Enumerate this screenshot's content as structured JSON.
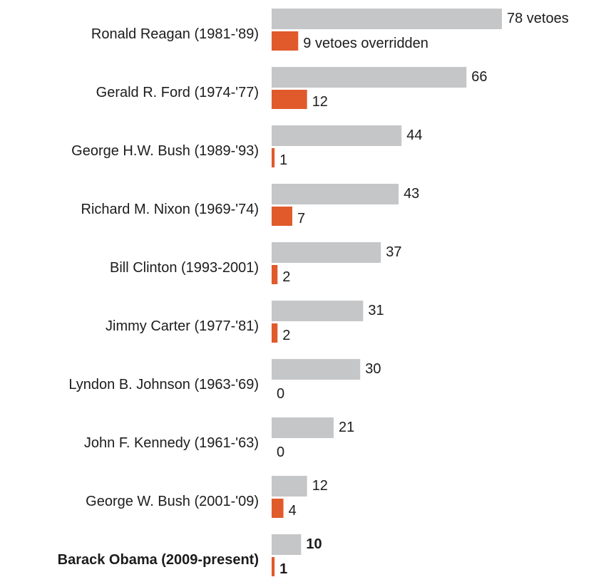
{
  "chart_data": {
    "type": "bar",
    "orientation": "horizontal",
    "categories": [
      "Ronald Reagan (1981-'89)",
      "Gerald R. Ford (1974-'77)",
      "George H.W. Bush (1989-'93)",
      "Richard M. Nixon (1969-'74)",
      "Bill Clinton (1993-2001)",
      "Jimmy Carter (1977-'81)",
      "Lyndon B. Johnson (1963-'69)",
      "John F. Kennedy (1961-'63)",
      "George W. Bush (2001-'09)",
      "Barack Obama (2009-present)"
    ],
    "highlighted_category": "Barack Obama (2009-present)",
    "series": [
      {
        "color": "#c5c6c8",
        "values": [
          78,
          66,
          44,
          43,
          37,
          31,
          30,
          21,
          12,
          10
        ],
        "first_label_suffix": " vetoes"
      },
      {
        "color": "#e05a2b",
        "values": [
          9,
          12,
          1,
          7,
          2,
          2,
          0,
          0,
          4,
          1
        ],
        "first_label_suffix": " vetoes overridden"
      }
    ],
    "xlim": [
      0,
      78
    ],
    "grid": false,
    "legend": "none"
  }
}
